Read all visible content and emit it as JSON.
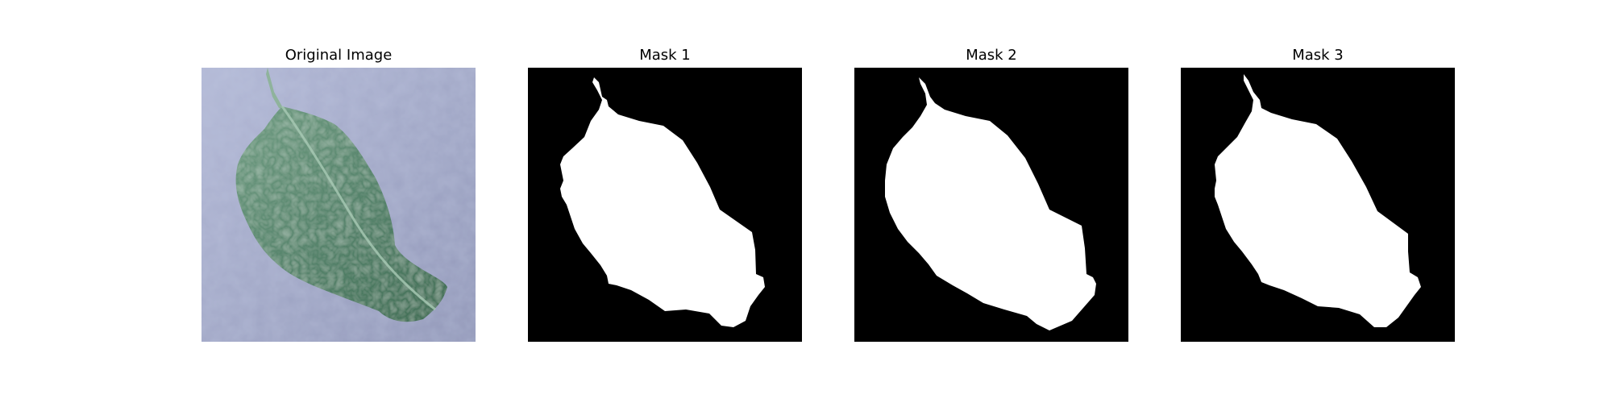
{
  "panels": [
    {
      "title": "Original Image"
    },
    {
      "title": "Mask 1"
    },
    {
      "title": "Mask 2"
    },
    {
      "title": "Mask 3"
    }
  ],
  "colors": {
    "background": "#a9b0cc",
    "leaf": "#5c8a72",
    "mask_foreground": "#ffffff",
    "mask_background": "#000000"
  }
}
